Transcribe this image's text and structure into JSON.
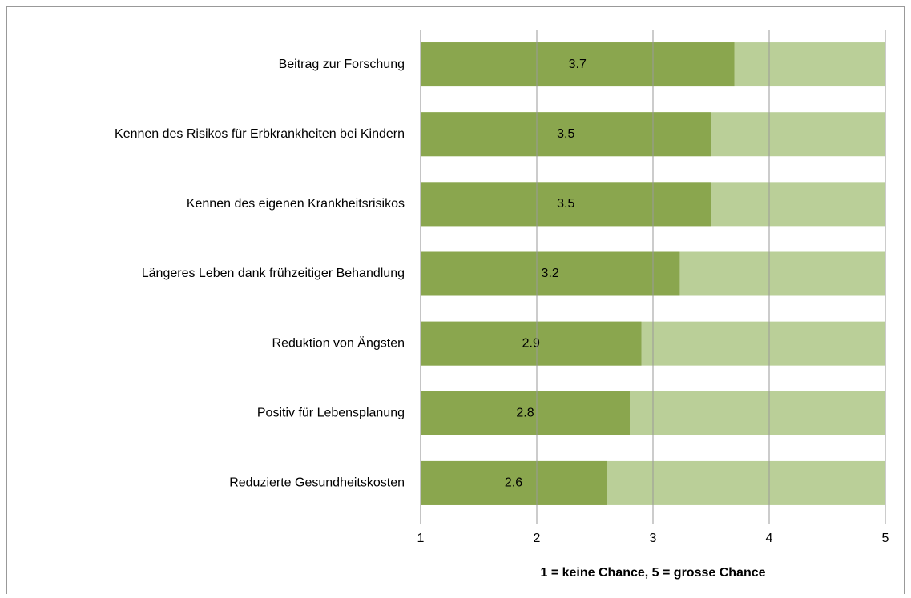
{
  "chart_data": {
    "type": "hbar",
    "categories": [
      "Beitrag zur Forschung",
      "Kennen des Risikos für Erbkrankheiten bei Kindern",
      "Kennen des eigenen Krankheitsrisikos",
      "Längeres Leben dank frühzeitiger Behandlung",
      "Reduktion von Ängsten",
      "Positiv für Lebensplanung",
      "Reduzierte Gesundheitskosten"
    ],
    "values": [
      3.7,
      3.5,
      3.5,
      3.23,
      2.9,
      2.8,
      2.6
    ],
    "value_labels": [
      "3.7",
      "3.5",
      "3.5",
      "3.2",
      "2.9",
      "2.8",
      "2.6"
    ],
    "color": "#8aa64e",
    "track_color": "#bacf98",
    "xlim": [
      1,
      5
    ],
    "xticks": [
      1,
      2,
      3,
      4,
      5
    ],
    "grid": true,
    "x_label": "1 = keine Chance, 5 = grosse Chance"
  }
}
